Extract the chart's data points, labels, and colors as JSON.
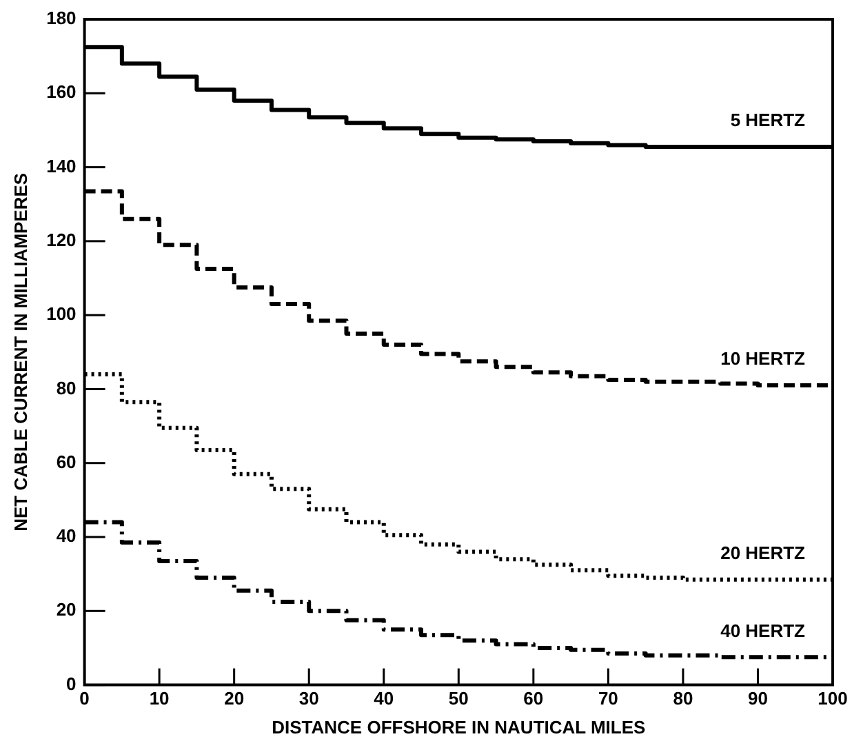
{
  "chart_data": {
    "type": "step",
    "xlabel": "DISTANCE OFFSHORE IN NAUTICAL MILES",
    "ylabel": "NET CABLE CURRENT IN MILLIAMPERES",
    "x": [
      0,
      5,
      10,
      15,
      20,
      25,
      30,
      35,
      40,
      45,
      50,
      55,
      60,
      65,
      70,
      75,
      80,
      85,
      90,
      95,
      100
    ],
    "series": [
      {
        "name": "5 HERTZ",
        "color": "#000000",
        "line_style": "solid",
        "values": [
          172.5,
          168,
          164.5,
          161,
          158,
          155.5,
          153.5,
          152,
          150.5,
          149,
          148,
          147.5,
          147,
          146.5,
          146,
          145.5,
          145.5,
          145.5,
          145.5,
          145.5,
          145.5
        ]
      },
      {
        "name": "10 HERTZ",
        "color": "#000000",
        "line_style": "dashed",
        "values": [
          133.5,
          126,
          119,
          112.5,
          107.5,
          103,
          98.5,
          95,
          92,
          89.5,
          87.5,
          86,
          84.5,
          83.5,
          82.5,
          82,
          82,
          81.5,
          81,
          81,
          81
        ]
      },
      {
        "name": "20 HERTZ",
        "color": "#000000",
        "line_style": "dotted",
        "values": [
          84,
          76.5,
          69.5,
          63.5,
          57,
          53,
          47.5,
          44,
          40.5,
          38,
          36,
          34,
          32.5,
          31,
          29.5,
          29,
          28.5,
          28.5,
          28.5,
          28.5,
          28.5
        ]
      },
      {
        "name": "40 HERTZ",
        "color": "#000000",
        "line_style": "dashdot",
        "values": [
          44,
          38.5,
          33.5,
          29,
          25.5,
          22.5,
          20,
          17.5,
          15,
          13.5,
          12,
          11,
          10,
          9.5,
          8.5,
          8,
          8,
          7.5,
          7.5,
          7.5,
          7.5
        ]
      }
    ],
    "xlim": [
      0,
      100
    ],
    "xticks": [
      0,
      10,
      20,
      30,
      40,
      50,
      60,
      70,
      80,
      90,
      100
    ],
    "ylim": [
      0,
      180
    ],
    "yticks": [
      0,
      20,
      40,
      60,
      80,
      100,
      120,
      140,
      160,
      180
    ],
    "grid": false,
    "legend": false
  }
}
